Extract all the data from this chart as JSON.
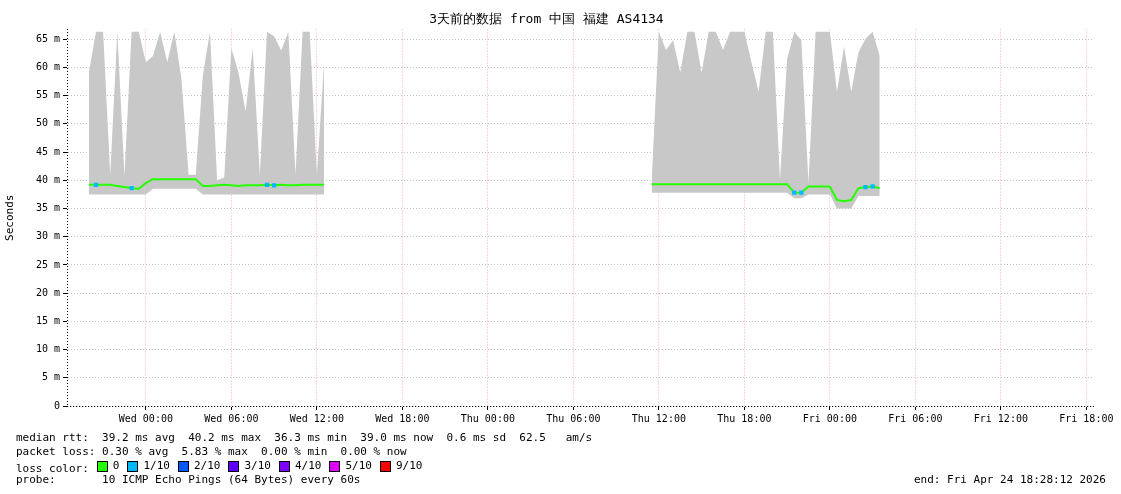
{
  "chart_data": {
    "type": "line",
    "title": "3天前的数据 from 中国 福建 AS4134",
    "ylabel": "Seconds",
    "legend_title": "loss color:",
    "legend": "bottom",
    "grid": true,
    "marker": "none",
    "line_style": "solid",
    "x": [
      "2026-04-21T20:00",
      "2026-04-21T20:30",
      "2026-04-21T21:00",
      "2026-04-21T21:30",
      "2026-04-21T22:00",
      "2026-04-21T22:30",
      "2026-04-21T23:00",
      "2026-04-21T23:30",
      "2026-04-22T00:00",
      "2026-04-22T00:30",
      "2026-04-22T01:00",
      "2026-04-22T01:30",
      "2026-04-22T02:00",
      "2026-04-22T02:30",
      "2026-04-22T03:00",
      "2026-04-22T03:30",
      "2026-04-22T04:00",
      "2026-04-22T04:30",
      "2026-04-22T05:00",
      "2026-04-22T05:30",
      "2026-04-22T06:00",
      "2026-04-22T06:30",
      "2026-04-22T07:00",
      "2026-04-22T07:30",
      "2026-04-22T08:00",
      "2026-04-22T08:30",
      "2026-04-22T09:00",
      "2026-04-22T09:30",
      "2026-04-22T10:00",
      "2026-04-22T10:30",
      "2026-04-22T11:00",
      "2026-04-22T11:30",
      "2026-04-22T12:00",
      "2026-04-22T12:30",
      "2026-04-23T00:00",
      "2026-04-23T11:30",
      "2026-04-23T12:00",
      "2026-04-23T12:30",
      "2026-04-23T13:00",
      "2026-04-23T13:30",
      "2026-04-23T14:00",
      "2026-04-23T14:30",
      "2026-04-23T15:00",
      "2026-04-23T15:30",
      "2026-04-23T16:00",
      "2026-04-23T16:30",
      "2026-04-23T17:00",
      "2026-04-23T17:30",
      "2026-04-23T18:00",
      "2026-04-23T18:30",
      "2026-04-23T19:00",
      "2026-04-23T19:30",
      "2026-04-23T20:00",
      "2026-04-23T20:30",
      "2026-04-23T21:00",
      "2026-04-23T21:30",
      "2026-04-23T22:00",
      "2026-04-23T22:30",
      "2026-04-23T23:00",
      "2026-04-23T23:30",
      "2026-04-24T00:00",
      "2026-04-24T00:30",
      "2026-04-24T01:00",
      "2026-04-24T01:30",
      "2026-04-24T02:00",
      "2026-04-24T02:30",
      "2026-04-24T03:00",
      "2026-04-24T03:30"
    ],
    "series": [
      {
        "name": "0",
        "color": "#26ff00",
        "values": [
          39.2,
          39.2,
          39.2,
          39.2,
          39.0,
          38.8,
          38.6,
          38.5,
          39.5,
          40.2,
          40.2,
          40.2,
          40.2,
          40.2,
          40.2,
          40.2,
          39.0,
          39.0,
          39.1,
          39.2,
          39.1,
          39.0,
          39.1,
          39.1,
          39.1,
          39.2,
          39.1,
          39.2,
          39.1,
          39.1,
          39.2,
          39.2,
          39.2,
          39.2,
          null,
          39.3,
          39.3,
          39.3,
          39.3,
          39.3,
          39.3,
          39.3,
          39.3,
          39.3,
          39.3,
          39.3,
          39.3,
          39.3,
          39.3,
          39.3,
          39.3,
          39.3,
          39.3,
          39.3,
          39.3,
          37.8,
          37.8,
          38.9,
          38.9,
          38.9,
          38.9,
          36.5,
          36.3,
          36.5,
          38.6,
          38.8,
          38.9,
          38.6
        ],
        "lower": [
          37.5,
          37.5,
          37.5,
          37.5,
          37.5,
          37.5,
          37.5,
          37.5,
          37.5,
          38.5,
          38.5,
          38.5,
          38.5,
          38.5,
          38.5,
          38.5,
          37.5,
          37.5,
          37.5,
          37.5,
          37.5,
          37.5,
          37.5,
          37.5,
          37.5,
          37.5,
          37.5,
          37.5,
          37.5,
          37.5,
          37.5,
          37.5,
          37.5,
          37.5,
          null,
          37.8,
          37.8,
          37.8,
          37.8,
          37.8,
          37.8,
          37.8,
          37.8,
          37.8,
          37.8,
          37.8,
          37.8,
          37.8,
          37.8,
          37.8,
          37.8,
          37.8,
          37.8,
          37.8,
          37.8,
          36.8,
          36.8,
          37.5,
          37.5,
          37.5,
          37.5,
          35.0,
          35.0,
          35.0,
          37.2,
          37.2,
          37.2,
          37.2
        ],
        "upper": [
          59.1,
          66.3,
          66.3,
          41.0,
          66.3,
          40.8,
          66.3,
          66.3,
          60.9,
          62.0,
          66.3,
          60.9,
          66.3,
          57.9,
          41.0,
          41.0,
          58.6,
          66.3,
          40.0,
          40.5,
          63.4,
          59.1,
          52.2,
          63.4,
          41.0,
          66.3,
          65.5,
          63.0,
          66.3,
          41.0,
          66.3,
          66.3,
          41.0,
          60.5,
          null,
          40.1,
          66.3,
          63.1,
          64.8,
          59.1,
          66.3,
          66.3,
          59.1,
          66.3,
          66.3,
          63.1,
          66.3,
          66.3,
          66.3,
          60.9,
          55.7,
          66.3,
          66.3,
          40.1,
          61.5,
          66.3,
          64.8,
          39.5,
          66.3,
          66.3,
          66.3,
          55.7,
          63.7,
          55.7,
          62.6,
          65.1,
          66.3,
          62.0
        ]
      },
      {
        "name": "1/10",
        "type": "scatter",
        "marker": "square",
        "color": "#00b8ff",
        "values": [
          null,
          39.2,
          null,
          null,
          null,
          null,
          38.6,
          null,
          null,
          null,
          null,
          null,
          null,
          null,
          null,
          null,
          null,
          null,
          null,
          null,
          null,
          null,
          null,
          null,
          null,
          39.2,
          39.1,
          null,
          null,
          null,
          null,
          null,
          null,
          null,
          null,
          null,
          null,
          null,
          null,
          null,
          null,
          null,
          null,
          null,
          null,
          null,
          null,
          null,
          null,
          null,
          null,
          null,
          null,
          null,
          null,
          37.8,
          37.8,
          null,
          null,
          null,
          null,
          null,
          null,
          null,
          null,
          38.8,
          38.9,
          null
        ]
      },
      {
        "name": "2/10",
        "color": "#0059ff",
        "values": [
          null,
          null,
          null,
          null,
          null,
          null,
          null,
          null,
          null,
          null,
          null,
          null,
          null,
          null,
          null,
          null,
          null,
          null,
          null,
          null,
          null,
          null,
          null,
          null,
          null,
          null,
          null,
          null,
          null,
          null,
          null,
          null,
          null,
          null,
          null,
          null,
          null,
          null,
          null,
          null,
          null,
          null,
          null,
          null,
          null,
          null,
          null,
          null,
          null,
          null,
          null,
          null,
          null,
          null,
          null,
          null,
          null,
          null,
          null,
          null,
          null,
          null,
          null,
          null,
          null,
          null,
          null,
          null
        ]
      },
      {
        "name": "3/10",
        "color": "#5e00ff",
        "values": [
          null,
          null,
          null,
          null,
          null,
          null,
          null,
          null,
          null,
          null,
          null,
          null,
          null,
          null,
          null,
          null,
          null,
          null,
          null,
          null,
          null,
          null,
          null,
          null,
          null,
          null,
          null,
          null,
          null,
          null,
          null,
          null,
          null,
          null,
          null,
          null,
          null,
          null,
          null,
          null,
          null,
          null,
          null,
          null,
          null,
          null,
          null,
          null,
          null,
          null,
          null,
          null,
          null,
          null,
          null,
          null,
          null,
          null,
          null,
          null,
          null,
          null,
          null,
          null,
          null,
          null,
          null,
          null
        ]
      },
      {
        "name": "4/10",
        "color": "#7e00ff",
        "values": [
          null,
          null,
          null,
          null,
          null,
          null,
          null,
          null,
          null,
          null,
          null,
          null,
          null,
          null,
          null,
          null,
          null,
          null,
          null,
          null,
          null,
          null,
          null,
          null,
          null,
          null,
          null,
          null,
          null,
          null,
          null,
          null,
          null,
          null,
          null,
          null,
          null,
          null,
          null,
          null,
          null,
          null,
          null,
          null,
          null,
          null,
          null,
          null,
          null,
          null,
          null,
          null,
          null,
          null,
          null,
          null,
          null,
          null,
          null,
          null,
          null,
          null,
          null,
          null,
          null,
          null,
          null,
          null
        ]
      },
      {
        "name": "5/10",
        "color": "#dd00ff",
        "values": [
          null,
          null,
          null,
          null,
          null,
          null,
          null,
          null,
          null,
          null,
          null,
          null,
          null,
          null,
          null,
          null,
          null,
          null,
          null,
          null,
          null,
          null,
          null,
          null,
          null,
          null,
          null,
          null,
          null,
          null,
          null,
          null,
          null,
          null,
          null,
          null,
          null,
          null,
          null,
          null,
          null,
          null,
          null,
          null,
          null,
          null,
          null,
          null,
          null,
          null,
          null,
          null,
          null,
          null,
          null,
          null,
          null,
          null,
          null,
          null,
          null,
          null,
          null,
          null,
          null,
          null,
          null,
          null
        ]
      },
      {
        "name": "9/10",
        "color": "#ff0000",
        "values": [
          null,
          null,
          null,
          null,
          null,
          null,
          null,
          null,
          null,
          null,
          null,
          null,
          null,
          null,
          null,
          null,
          null,
          null,
          null,
          null,
          null,
          null,
          null,
          null,
          null,
          null,
          null,
          null,
          null,
          null,
          null,
          null,
          null,
          null,
          null,
          null,
          null,
          null,
          null,
          null,
          null,
          null,
          null,
          null,
          null,
          null,
          null,
          null,
          null,
          null,
          null,
          null,
          null,
          null,
          null,
          null,
          null,
          null,
          null,
          null,
          null,
          null,
          null,
          null,
          null,
          null,
          null,
          null
        ]
      }
    ],
    "xlim": [
      "2026-04-21T18:28",
      "2026-04-24T18:28"
    ],
    "xticks": [
      {
        "value": "2026-04-22T00:00",
        "label": "Wed 00:00"
      },
      {
        "value": "2026-04-22T06:00",
        "label": "Wed 06:00"
      },
      {
        "value": "2026-04-22T12:00",
        "label": "Wed 12:00"
      },
      {
        "value": "2026-04-22T18:00",
        "label": "Wed 18:00"
      },
      {
        "value": "2026-04-23T00:00",
        "label": "Thu 00:00"
      },
      {
        "value": "2026-04-23T06:00",
        "label": "Thu 06:00"
      },
      {
        "value": "2026-04-23T12:00",
        "label": "Thu 12:00"
      },
      {
        "value": "2026-04-23T18:00",
        "label": "Thu 18:00"
      },
      {
        "value": "2026-04-24T00:00",
        "label": "Fri 00:00"
      },
      {
        "value": "2026-04-24T06:00",
        "label": "Fri 06:00"
      },
      {
        "value": "2026-04-24T12:00",
        "label": "Fri 12:00"
      },
      {
        "value": "2026-04-24T18:00",
        "label": "Fri 18:00"
      }
    ],
    "ylim": [
      0,
      66.7
    ],
    "yticks": [
      0,
      {
        "value": 5,
        "label": "5 m"
      },
      {
        "value": 10,
        "label": "10 m"
      },
      {
        "value": 15,
        "label": "15 m"
      },
      {
        "value": 20,
        "label": "20 m"
      },
      {
        "value": 25,
        "label": "25 m"
      },
      {
        "value": 30,
        "label": "30 m"
      },
      {
        "value": 35,
        "label": "35 m"
      },
      {
        "value": 40,
        "label": "40 m"
      },
      {
        "value": 45,
        "label": "45 m"
      },
      {
        "value": 50,
        "label": "50 m"
      },
      {
        "value": 55,
        "label": "55 m"
      },
      {
        "value": 60,
        "label": "60 m"
      },
      {
        "value": 65,
        "label": "65 m"
      }
    ],
    "annotations": [
      "median rtt:  39.2 ms avg  40.2 ms max  36.3 ms min  39.0 ms now  0.6 ms sd  62.5   am/s",
      "packet loss: 0.30 % avg  5.83 % max  0.00 % min  0.00 % now",
      "probe:       10 ICMP Echo Pings (64 Bytes) every 60s",
      "end: Fri Apr 24 18:28:12 2026"
    ]
  }
}
